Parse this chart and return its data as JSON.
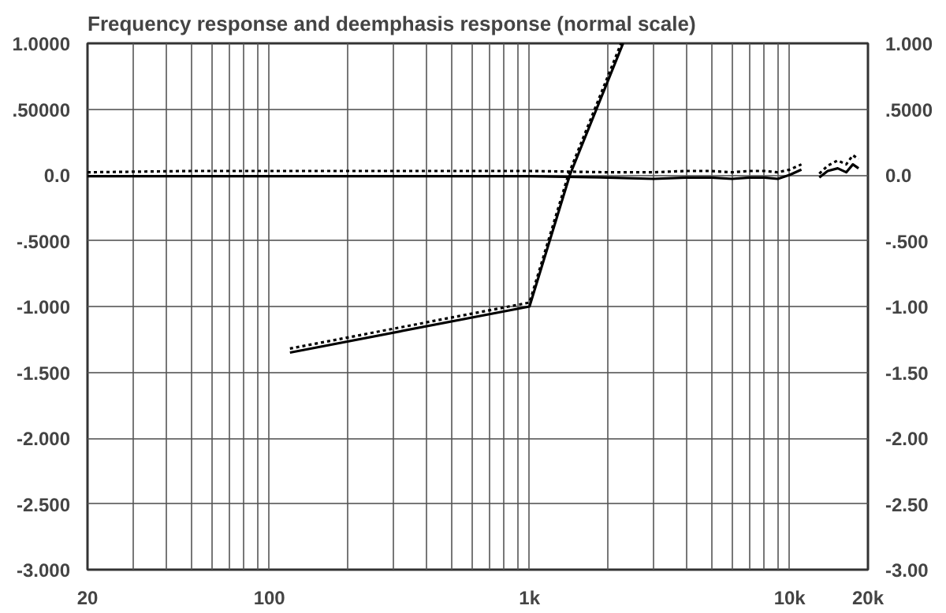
{
  "chart_data": {
    "type": "line",
    "title": "Frequency response and deemphasis response (normal scale)",
    "log": "x",
    "grid": true,
    "marker": "none",
    "xlim": [
      20,
      20000
    ],
    "xticks": [
      20,
      {
        "value": 30,
        "label": null
      },
      {
        "value": 40,
        "label": null
      },
      {
        "value": 50,
        "label": null
      },
      {
        "value": 60,
        "label": null
      },
      {
        "value": 70,
        "label": null
      },
      {
        "value": 80,
        "label": null
      },
      {
        "value": 90,
        "label": null
      },
      100,
      {
        "value": 200,
        "label": null
      },
      {
        "value": 300,
        "label": null
      },
      {
        "value": 400,
        "label": null
      },
      {
        "value": 500,
        "label": null
      },
      {
        "value": 600,
        "label": null
      },
      {
        "value": 700,
        "label": null
      },
      {
        "value": 800,
        "label": null
      },
      {
        "value": 900,
        "label": null
      },
      {
        "value": 1000,
        "label": "1k"
      },
      {
        "value": 2000,
        "label": null
      },
      {
        "value": 3000,
        "label": null
      },
      {
        "value": 4000,
        "label": null
      },
      {
        "value": 5000,
        "label": null
      },
      {
        "value": 6000,
        "label": null
      },
      {
        "value": 7000,
        "label": null
      },
      {
        "value": 8000,
        "label": null
      },
      {
        "value": 9000,
        "label": null
      },
      {
        "value": 10000,
        "label": "10k"
      },
      {
        "value": 20000,
        "label": "20k"
      }
    ],
    "ylim": [
      -3,
      1
    ],
    "yticks": [
      {
        "value": 1,
        "label": "1.0000"
      },
      {
        "value": 0.5,
        "label": ".50000"
      },
      {
        "value": 0,
        "label": "0.0"
      },
      {
        "value": -0.5,
        "label": "-.5000"
      },
      {
        "value": -1,
        "label": "-1.000"
      },
      {
        "value": -1.5,
        "label": "-1.500"
      },
      {
        "value": -2,
        "label": "-2.000"
      },
      {
        "value": -2.5,
        "label": "-2.500"
      },
      {
        "value": -3,
        "label": "-3.000"
      }
    ],
    "y2lim": [
      -3,
      1
    ],
    "y2ticks": [
      {
        "value": 1,
        "label": "1.000"
      },
      {
        "value": 0.5,
        "label": ".5000"
      },
      {
        "value": 0,
        "label": "0.0"
      },
      {
        "value": -0.5,
        "label": "-.500"
      },
      {
        "value": -1,
        "label": "-1.00"
      },
      {
        "value": -1.5,
        "label": "-1.50"
      },
      {
        "value": -2,
        "label": "-2.00"
      },
      {
        "value": -2.5,
        "label": "-2.50"
      },
      {
        "value": -3,
        "label": "-3.00"
      }
    ],
    "series": [
      {
        "color": "#000000",
        "line_style": "solid",
        "x": [
          20,
          50,
          100,
          200,
          500,
          1000,
          2000,
          3000,
          4000,
          5000,
          6000,
          7000,
          8000,
          9000,
          10000,
          11100,
          12300,
          13000,
          14000,
          15300,
          16500,
          17500,
          18400
        ],
        "values": [
          -0.01,
          -0.01,
          -0.01,
          -0.01,
          -0.01,
          -0.01,
          -0.02,
          -0.03,
          -0.02,
          -0.02,
          -0.03,
          -0.02,
          -0.02,
          -0.03,
          0,
          0.04,
          null,
          -0.02,
          0.03,
          0.05,
          0.02,
          0.08,
          0.05
        ]
      },
      {
        "color": "#000000",
        "line_style": "dotted",
        "x": [
          20,
          50,
          100,
          200,
          500,
          1000,
          2000,
          3000,
          4000,
          5000,
          6000,
          7000,
          8000,
          9000,
          10000,
          11100,
          12300,
          13000,
          14000,
          15300,
          16500,
          17500,
          18400
        ],
        "values": [
          0.02,
          0.03,
          0.03,
          0.03,
          0.03,
          0.03,
          0.02,
          0.02,
          0.03,
          0.03,
          0.02,
          0.03,
          0.03,
          0.02,
          0.04,
          0.08,
          null,
          0.01,
          0.07,
          0.11,
          0.08,
          0.15,
          0.12
        ]
      },
      {
        "color": "#000000",
        "line_style": "solid",
        "x": [
          120,
          1000,
          1430,
          2290
        ],
        "values": [
          -1.35,
          -1.0,
          0,
          1.0
        ]
      },
      {
        "color": "#000000",
        "line_style": "dotted",
        "x": [
          120,
          1000,
          1410,
          2250
        ],
        "values": [
          -1.32,
          -0.97,
          0,
          1.0
        ]
      }
    ]
  }
}
